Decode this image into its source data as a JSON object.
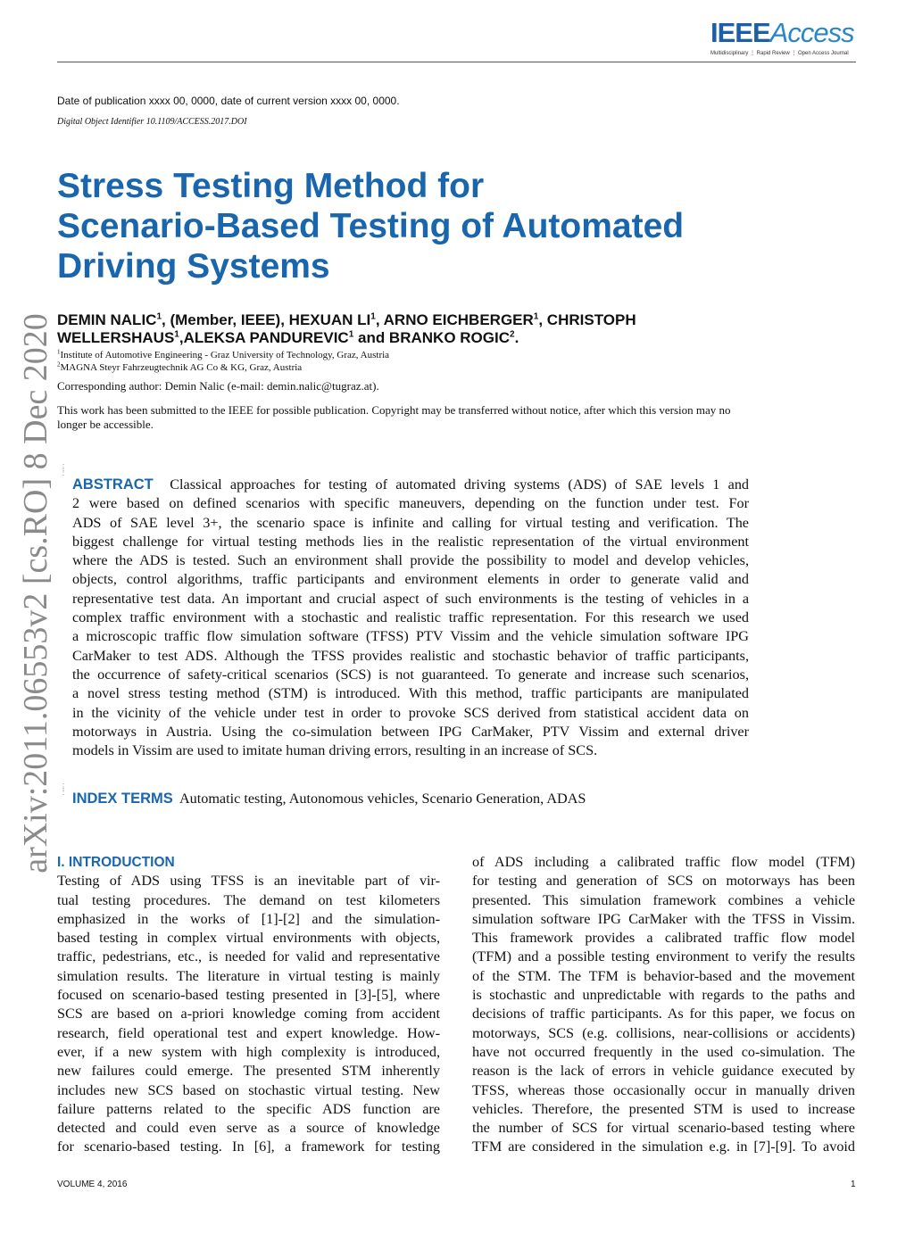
{
  "header": {
    "logo_text": "IEEE Access",
    "logo_tagline": "Multidisciplinary ⋮ Rapid Review ⋮ Open Access Journal",
    "publication_date": "Date of publication xxxx 00, 0000, date of current version xxxx 00, 0000.",
    "doi": "Digital Object Identifier 10.1109/ACCESS.2017.DOI"
  },
  "arxiv_stamp": "arXiv:2011.06553v2  [cs.RO]  8 Dec 2020",
  "title_lines": [
    "Stress Testing Method for",
    "Scenario-Based Testing of Automated",
    "Driving Systems"
  ],
  "authors_lines": [
    [
      {
        "t": "DEMIN NALIC"
      },
      {
        "s": "1"
      },
      {
        "t": ", (Member, IEEE), HEXUAN LI"
      },
      {
        "s": "1"
      },
      {
        "t": ", ARNO EICHBERGER"
      },
      {
        "s": "1"
      },
      {
        "t": ", CHRISTOPH"
      }
    ],
    [
      {
        "t": "WELLERSHAUS"
      },
      {
        "s": "1"
      },
      {
        "t": ",ALEKSA PANDUREVIC"
      },
      {
        "s": "1"
      },
      {
        "t": " and BRANKO ROGIC"
      },
      {
        "s": "2"
      },
      {
        "t": "."
      }
    ]
  ],
  "affiliations": [
    {
      "num": "1",
      "text": "Institute of Automotive Engineering - Graz University of Technology, Graz, Austria"
    },
    {
      "num": "2",
      "text": "MAGNA Steyr Fahrzeugtechnik AG Co & KG, Graz, Austria"
    }
  ],
  "corresponding": "Corresponding author: Demin Nalic (e-mail: demin.nalic@tugraz.at).",
  "notice": "This work has been submitted to the IEEE for possible publication. Copyright may be transferred without notice, after which this version may no longer be accessible.",
  "abstract": {
    "label": "ABSTRACT",
    "lines": [
      "Classical approaches for testing of automated driving systems (ADS) of SAE levels 1 and",
      "2 were based on defined scenarios with specific maneuvers, depending on the function under test. For",
      "ADS of SAE level 3+, the scenario space is infinite and calling for virtual testing and verification. The",
      "biggest challenge for virtual testing methods lies in the realistic representation of the virtual environment",
      "where the ADS is tested. Such an environment shall provide the possibility to model and develop vehicles,",
      "objects, control algorithms, traffic participants and environment elements in order to generate valid and",
      "representative test data. An important and crucial aspect of such environments is the testing of vehicles in a",
      "complex traffic environment with a stochastic and realistic traffic representation. For this research we used",
      "a microscopic traffic flow simulation software (TFSS) PTV Vissim and the vehicle simulation software IPG",
      "CarMaker to test ADS. Although the TFSS provides realistic and stochastic behavior of traffic participants,",
      "the occurrence of safety-critical scenarios (SCS) is not guaranteed. To generate and increase such scenarios,",
      "a novel stress testing method (STM) is introduced. With this method, traffic participants are manipulated",
      "in the vicinity of the vehicle under test in order to provoke SCS derived from statistical accident data on",
      "motorways in Austria. Using the co-simulation between IPG CarMaker, PTV Vissim and external driver",
      "models in Vissim are used to imitate human driving errors, resulting in an increase of SCS."
    ]
  },
  "index_terms": {
    "label": "INDEX TERMS",
    "text": "Automatic testing, Autonomous vehicles, Scenario Generation, ADAS"
  },
  "introduction": {
    "heading": "I. INTRODUCTION",
    "left_lines": [
      "Testing of ADS using TFSS is an inevitable part of vir-",
      "tual testing procedures. The demand on test kilometers",
      "emphasized in the works of [1]-[2] and the simulation-",
      "based testing in complex virtual environments with objects,",
      "traffic, pedestrians, etc., is needed for valid and representative",
      "simulation results. The literature in virtual testing is mainly",
      "focused on scenario-based testing presented in [3]-[5], where",
      "SCS are based on a-priori knowledge coming from accident",
      "research, field operational test and expert knowledge. How-",
      "ever, if a new system with high complexity is introduced,",
      "new failures could emerge. The presented STM inherently",
      "includes new SCS based on stochastic virtual testing. New",
      "failure patterns related to the specific ADS function are",
      "detected and could even serve as a source of knowledge",
      "for scenario-based testing. In [6], a framework for testing"
    ],
    "right_lines": [
      "of ADS including a calibrated traffic flow model (TFM)",
      "for testing and generation of SCS on motorways has been",
      "presented. This simulation framework combines a vehicle",
      "simulation software IPG CarMaker with the TFSS in Vissim.",
      "This framework provides a calibrated traffic flow model",
      "(TFM) and a possible testing environment to verify the results",
      "of the STM. The TFM is behavior-based and the movement",
      "is stochastic and unpredictable with regards to the paths and",
      "decisions of traffic participants. As for this paper, we focus on",
      "motorways, SCS (e.g. collisions, near-collisions or accidents)",
      "have not occurred frequently in the used co-simulation. The",
      "reason is the lack of errors in vehicle guidance executed by",
      "TFSS, whereas those occasionally occur in manually driven",
      "vehicles. Therefore, the presented STM is used to increase",
      "the number of SCS for virtual scenario-based testing where",
      "TFM are considered in the simulation e.g. in [7]-[9]. To avoid"
    ]
  },
  "footer": {
    "volume": "VOLUME 4, 2016",
    "page": "1"
  },
  "colors": {
    "accent": "#1a66ad",
    "stamp": "#8a8a8a"
  }
}
